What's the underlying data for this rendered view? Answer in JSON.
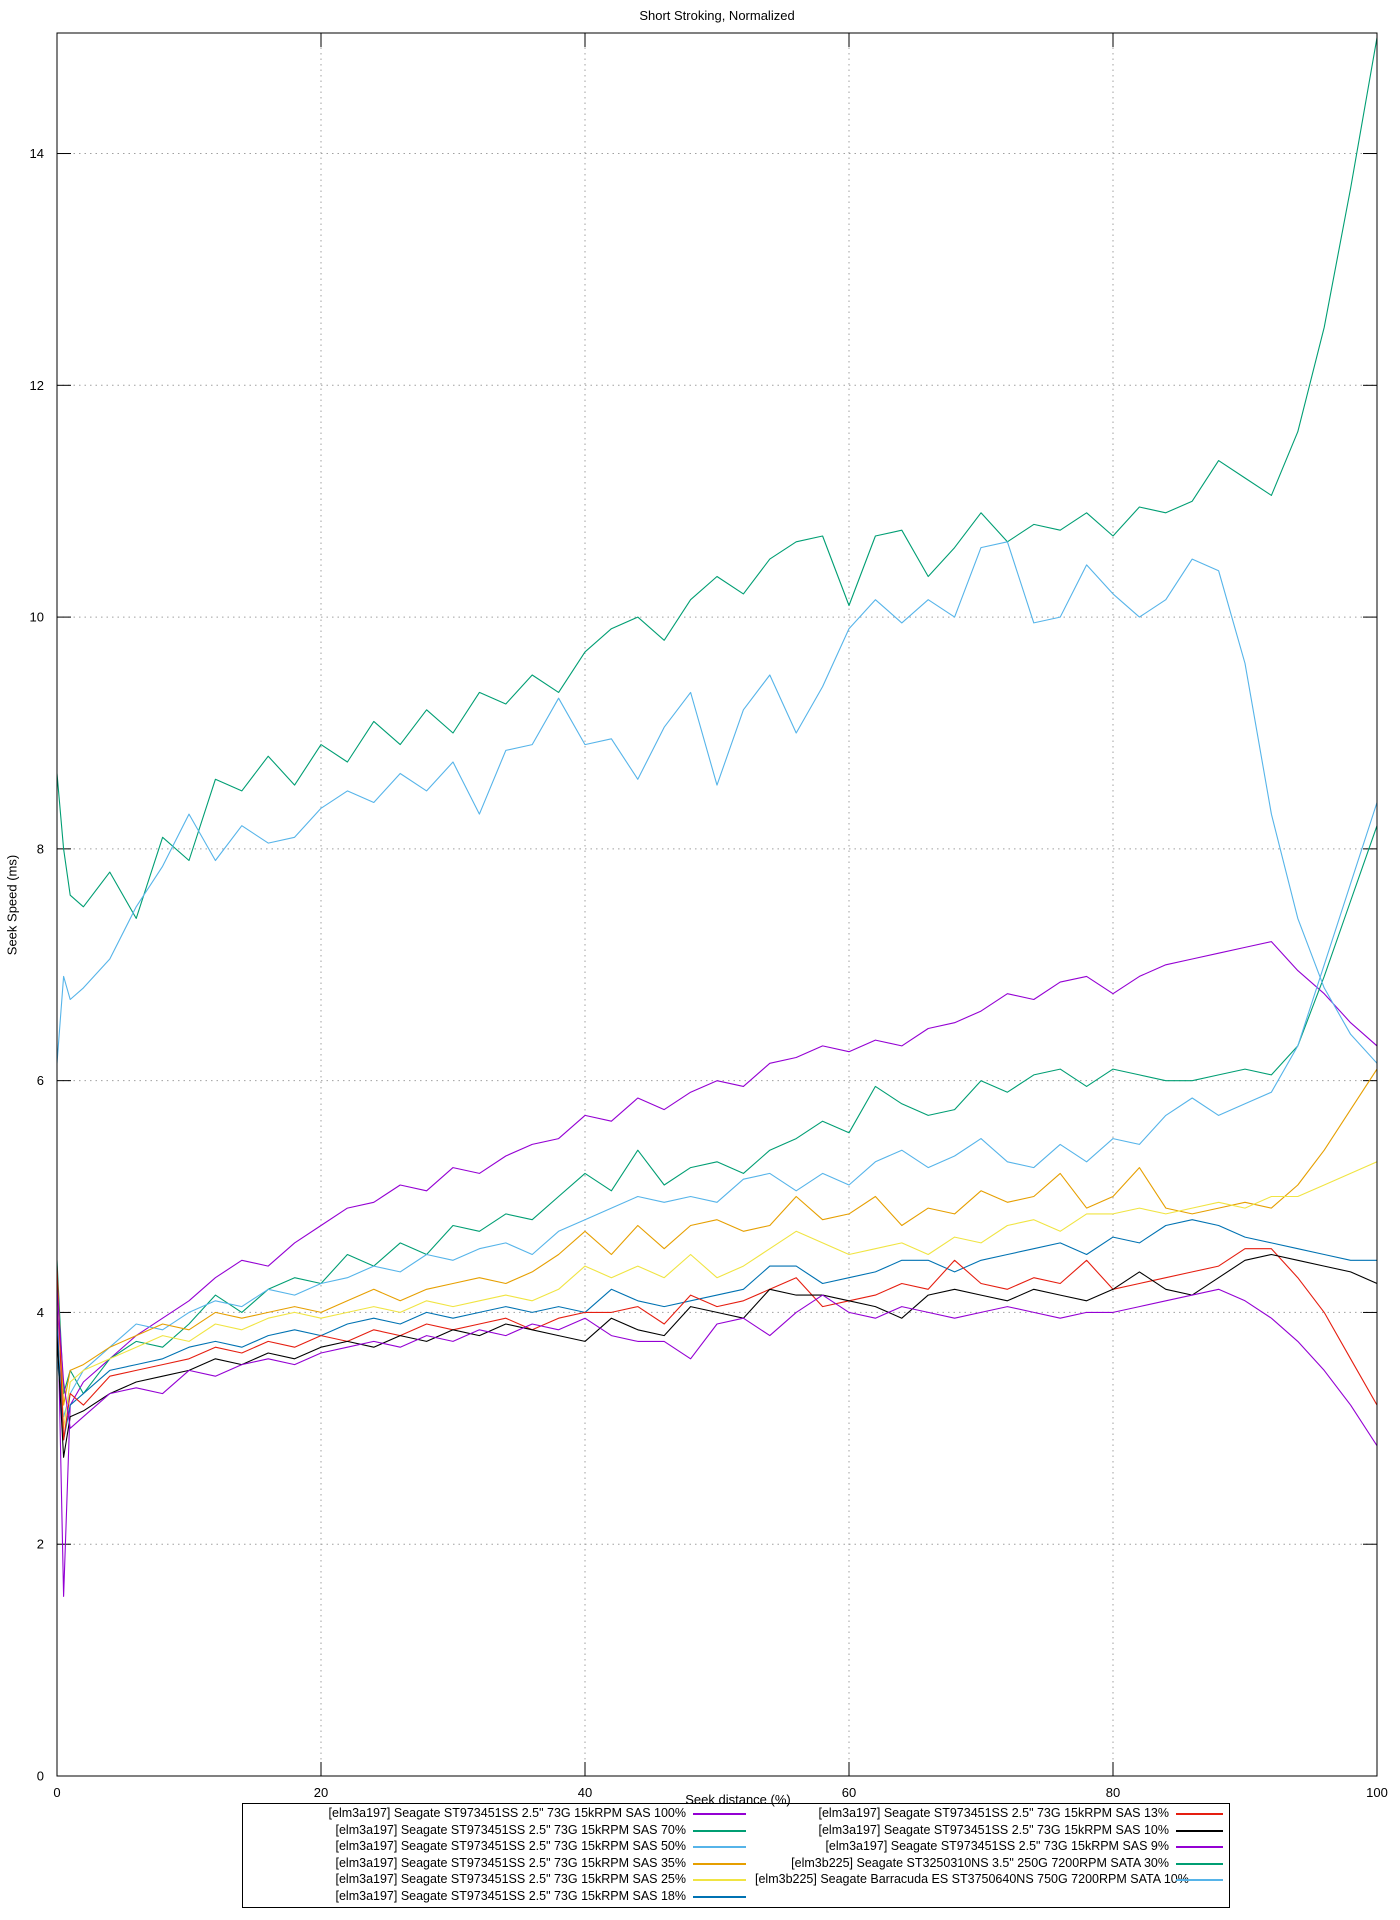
{
  "title": "Short Stroking, Normalized",
  "x_axis": {
    "label": "Seek distance (%)",
    "min": 0,
    "max": 100,
    "ticks": [
      0,
      20,
      40,
      60,
      80,
      100
    ]
  },
  "y_axis": {
    "label": "Seek Speed (ms)",
    "min": 0,
    "max": 15.04,
    "ticks": [
      0,
      2,
      4,
      6,
      8,
      10,
      12,
      14
    ]
  },
  "style_colors": {
    "grid": "#a0a0a0",
    "border": "#000000",
    "text": "#000000"
  },
  "legend": {
    "columns": [
      [
        0,
        1,
        2,
        3,
        4,
        5
      ],
      [
        6,
        7,
        8,
        9,
        10
      ]
    ]
  },
  "chart_data": {
    "type": "line",
    "title": "Short Stroking, Normalized",
    "xlabel": "Seek distance (%)",
    "ylabel": "Seek Speed (ms)",
    "xlim": [
      0,
      100
    ],
    "ylim": [
      0,
      15.04
    ],
    "grid": true,
    "legend_position": "below",
    "x": [
      0,
      0.5,
      1,
      2,
      4,
      6,
      8,
      10,
      12,
      14,
      16,
      18,
      20,
      22,
      24,
      26,
      28,
      30,
      32,
      34,
      36,
      38,
      40,
      42,
      44,
      46,
      48,
      50,
      52,
      54,
      56,
      58,
      60,
      62,
      64,
      66,
      68,
      70,
      72,
      74,
      76,
      78,
      80,
      82,
      84,
      86,
      88,
      90,
      92,
      94,
      96,
      98,
      100
    ],
    "series": [
      {
        "name": "[elm3a197] Seagate ST973451SS 2.5\" 73G 15kRPM SAS 100%",
        "color": "#9400d3",
        "values": [
          4.3,
          1.55,
          3.2,
          3.4,
          3.6,
          3.8,
          3.95,
          4.1,
          4.3,
          4.45,
          4.4,
          4.6,
          4.75,
          4.9,
          4.95,
          5.1,
          5.05,
          5.25,
          5.2,
          5.35,
          5.45,
          5.5,
          5.7,
          5.65,
          5.85,
          5.75,
          5.9,
          6.0,
          5.95,
          6.15,
          6.2,
          6.3,
          6.25,
          6.35,
          6.3,
          6.45,
          6.5,
          6.6,
          6.75,
          6.7,
          6.85,
          6.9,
          6.75,
          6.9,
          7.0,
          7.05,
          7.1,
          7.15,
          7.2,
          6.95,
          6.75,
          6.5,
          6.3
        ]
      },
      {
        "name": "[elm3a197] Seagate ST973451SS 2.5\" 73G 15kRPM SAS 70%",
        "color": "#009e73",
        "values": [
          4.45,
          3.3,
          3.5,
          3.3,
          3.6,
          3.75,
          3.7,
          3.9,
          4.15,
          4.0,
          4.2,
          4.3,
          4.25,
          4.5,
          4.4,
          4.6,
          4.5,
          4.75,
          4.7,
          4.85,
          4.8,
          5.0,
          5.2,
          5.05,
          5.4,
          5.1,
          5.25,
          5.3,
          5.2,
          5.4,
          5.5,
          5.65,
          5.55,
          5.95,
          5.8,
          5.7,
          5.75,
          6.0,
          5.9,
          6.05,
          6.1,
          5.95,
          6.1,
          6.05,
          6.0,
          6.0,
          6.05,
          6.1,
          6.05,
          6.3,
          6.9,
          7.55,
          8.2
        ]
      },
      {
        "name": "[elm3a197] Seagate ST973451SS 2.5\" 73G 15kRPM SAS 50%",
        "color": "#56b4e9",
        "values": [
          3.6,
          3.1,
          3.3,
          3.5,
          3.7,
          3.9,
          3.85,
          4.0,
          4.1,
          4.05,
          4.2,
          4.15,
          4.25,
          4.3,
          4.4,
          4.35,
          4.5,
          4.45,
          4.55,
          4.6,
          4.5,
          4.7,
          4.8,
          4.9,
          5.0,
          4.95,
          5.0,
          4.95,
          5.15,
          5.2,
          5.05,
          5.2,
          5.1,
          5.3,
          5.4,
          5.25,
          5.35,
          5.5,
          5.3,
          5.25,
          5.45,
          5.3,
          5.5,
          5.45,
          5.7,
          5.85,
          5.7,
          5.8,
          5.9,
          6.3,
          7.0,
          7.7,
          8.4
        ]
      },
      {
        "name": "[elm3a197] Seagate ST973451SS 2.5\" 73G 15kRPM SAS 35%",
        "color": "#e69f00",
        "values": [
          4.35,
          3.2,
          3.5,
          3.55,
          3.7,
          3.8,
          3.9,
          3.85,
          4.0,
          3.95,
          4.0,
          4.05,
          4.0,
          4.1,
          4.2,
          4.1,
          4.2,
          4.25,
          4.3,
          4.25,
          4.35,
          4.5,
          4.7,
          4.5,
          4.75,
          4.55,
          4.75,
          4.8,
          4.7,
          4.75,
          5.0,
          4.8,
          4.85,
          5.0,
          4.75,
          4.9,
          4.85,
          5.05,
          4.95,
          5.0,
          5.2,
          4.9,
          5.0,
          5.25,
          4.9,
          4.85,
          4.9,
          4.95,
          4.9,
          5.1,
          5.4,
          5.75,
          6.1
        ]
      },
      {
        "name": "[elm3a197] Seagate ST973451SS 2.5\" 73G 15kRPM SAS 25%",
        "color": "#f0e442",
        "values": [
          4.3,
          3.0,
          3.4,
          3.5,
          3.6,
          3.7,
          3.8,
          3.75,
          3.9,
          3.85,
          3.95,
          4.0,
          3.95,
          4.0,
          4.05,
          4.0,
          4.1,
          4.05,
          4.1,
          4.15,
          4.1,
          4.2,
          4.4,
          4.3,
          4.4,
          4.3,
          4.5,
          4.3,
          4.4,
          4.55,
          4.7,
          4.6,
          4.5,
          4.55,
          4.6,
          4.5,
          4.65,
          4.6,
          4.75,
          4.8,
          4.7,
          4.85,
          4.85,
          4.9,
          4.85,
          4.9,
          4.95,
          4.9,
          5.0,
          5.0,
          5.1,
          5.2,
          5.3
        ]
      },
      {
        "name": "[elm3a197] Seagate ST973451SS 2.5\" 73G 15kRPM SAS 18%",
        "color": "#0072b2",
        "values": [
          3.9,
          2.9,
          3.2,
          3.3,
          3.5,
          3.55,
          3.6,
          3.7,
          3.75,
          3.7,
          3.8,
          3.85,
          3.8,
          3.9,
          3.95,
          3.9,
          4.0,
          3.95,
          4.0,
          4.05,
          4.0,
          4.05,
          4.0,
          4.2,
          4.1,
          4.05,
          4.1,
          4.15,
          4.2,
          4.4,
          4.4,
          4.25,
          4.3,
          4.35,
          4.45,
          4.45,
          4.35,
          4.45,
          4.5,
          4.55,
          4.6,
          4.5,
          4.65,
          4.6,
          4.75,
          4.8,
          4.75,
          4.65,
          4.6,
          4.55,
          4.5,
          4.45,
          4.45
        ]
      },
      {
        "name": "[elm3a197] Seagate ST973451SS 2.5\" 73G 15kRPM SAS 13%",
        "color": "#e51e10",
        "values": [
          4.4,
          2.9,
          3.3,
          3.2,
          3.45,
          3.5,
          3.55,
          3.6,
          3.7,
          3.65,
          3.75,
          3.7,
          3.8,
          3.75,
          3.85,
          3.8,
          3.9,
          3.85,
          3.9,
          3.95,
          3.85,
          3.95,
          4.0,
          4.0,
          4.05,
          3.9,
          4.15,
          4.05,
          4.1,
          4.2,
          4.3,
          4.05,
          4.1,
          4.15,
          4.25,
          4.2,
          4.45,
          4.25,
          4.2,
          4.3,
          4.25,
          4.45,
          4.2,
          4.25,
          4.3,
          4.35,
          4.4,
          4.55,
          4.55,
          4.3,
          4.0,
          3.6,
          3.2
        ]
      },
      {
        "name": "[elm3a197] Seagate ST973451SS 2.5\" 73G 15kRPM SAS 10%",
        "color": "#000000",
        "values": [
          3.8,
          2.75,
          3.1,
          3.15,
          3.3,
          3.4,
          3.45,
          3.5,
          3.6,
          3.55,
          3.65,
          3.6,
          3.7,
          3.75,
          3.7,
          3.8,
          3.75,
          3.85,
          3.8,
          3.9,
          3.85,
          3.8,
          3.75,
          3.95,
          3.85,
          3.8,
          4.05,
          4.0,
          3.95,
          4.2,
          4.15,
          4.15,
          4.1,
          4.05,
          3.95,
          4.15,
          4.2,
          4.15,
          4.1,
          4.2,
          4.15,
          4.1,
          4.2,
          4.35,
          4.2,
          4.15,
          4.3,
          4.45,
          4.5,
          4.45,
          4.4,
          4.35,
          4.25
        ]
      },
      {
        "name": "[elm3a197] Seagate ST973451SS 2.5\" 73G 15kRPM SAS 9%",
        "color": "#9400d3",
        "values": [
          4.2,
          3.4,
          3.0,
          3.1,
          3.3,
          3.35,
          3.3,
          3.5,
          3.45,
          3.55,
          3.6,
          3.55,
          3.65,
          3.7,
          3.75,
          3.7,
          3.8,
          3.75,
          3.85,
          3.8,
          3.9,
          3.85,
          3.95,
          3.8,
          3.75,
          3.75,
          3.6,
          3.9,
          3.95,
          3.8,
          4.0,
          4.15,
          4.0,
          3.95,
          4.05,
          4.0,
          3.95,
          4.0,
          4.05,
          4.0,
          3.95,
          4.0,
          4.0,
          4.05,
          4.1,
          4.15,
          4.2,
          4.1,
          3.95,
          3.75,
          3.5,
          3.2,
          2.85
        ]
      },
      {
        "name": "[elm3b225] Seagate ST3250310NS 3.5\" 250G 7200RPM SATA 30%",
        "color": "#009e73",
        "values": [
          8.65,
          8.0,
          7.6,
          7.5,
          7.8,
          7.4,
          8.1,
          7.9,
          8.6,
          8.5,
          8.8,
          8.55,
          8.9,
          8.75,
          9.1,
          8.9,
          9.2,
          9.0,
          9.35,
          9.25,
          9.5,
          9.35,
          9.7,
          9.9,
          10.0,
          9.8,
          10.15,
          10.35,
          10.2,
          10.5,
          10.65,
          10.7,
          10.1,
          10.7,
          10.75,
          10.35,
          10.6,
          10.9,
          10.65,
          10.8,
          10.75,
          10.9,
          10.7,
          10.95,
          10.9,
          11.0,
          11.35,
          11.2,
          11.05,
          11.6,
          12.5,
          13.7,
          15.0
        ]
      },
      {
        "name": "[elm3b225] Seagate Barracuda ES ST3750640NS 750G 7200RPM SATA 10%",
        "color": "#56b4e9",
        "values": [
          6.15,
          6.9,
          6.7,
          6.8,
          7.05,
          7.5,
          7.85,
          8.3,
          7.9,
          8.2,
          8.05,
          8.1,
          8.35,
          8.5,
          8.4,
          8.65,
          8.5,
          8.75,
          8.3,
          8.85,
          8.9,
          9.3,
          8.9,
          8.95,
          8.6,
          9.05,
          9.35,
          8.55,
          9.2,
          9.5,
          9.0,
          9.4,
          9.9,
          10.15,
          9.95,
          10.15,
          10.0,
          10.6,
          10.65,
          9.95,
          10.0,
          10.45,
          10.2,
          10.0,
          10.15,
          10.5,
          10.4,
          9.6,
          8.3,
          7.4,
          6.8,
          6.4,
          6.15
        ]
      }
    ]
  }
}
